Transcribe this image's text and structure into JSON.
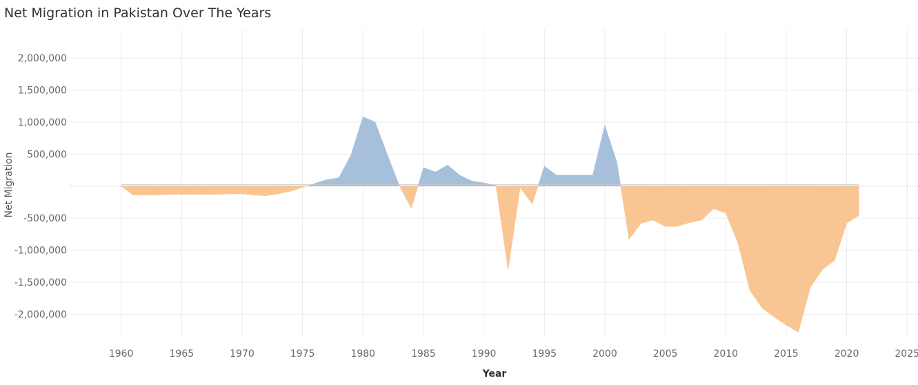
{
  "title": "Net Migration in Pakistan Over The Years",
  "colors": {
    "positive": "#a6c0db",
    "negative": "#f9c693",
    "grid": "#ececec",
    "zero": "#c8c8c8"
  },
  "chart_data": {
    "type": "area",
    "title": "Net Migration in Pakistan Over The Years",
    "xlabel": "Year",
    "ylabel": "Net Migration",
    "xlim": [
      1955.8,
      2025.9
    ],
    "ylim": [
      -2350000,
      2280000
    ],
    "xticks": [
      1960,
      1965,
      1970,
      1975,
      1980,
      1985,
      1990,
      1995,
      2000,
      2005,
      2010,
      2015,
      2020,
      2025
    ],
    "xtick_labels": [
      "1960",
      "1965",
      "1970",
      "1975",
      "1980",
      "1985",
      "1990",
      "1995",
      "2000",
      "2005",
      "2010",
      "2015",
      "2020",
      "2025"
    ],
    "yticks": [
      2000000,
      1500000,
      1000000,
      500000,
      -500000,
      -1000000,
      -1500000,
      -2000000
    ],
    "ytick_labels": [
      "2,000,000",
      "1,500,000",
      "1,000,000",
      "500,000",
      "-500,000",
      "-1,000,000",
      "-1,500,000",
      "-2,000,000"
    ],
    "grid": true,
    "series": [
      {
        "x": [
          1960,
          1961,
          1962,
          1963,
          1964,
          1965,
          1966,
          1967,
          1968,
          1969,
          1970,
          1971,
          1972,
          1973,
          1974,
          1975,
          1976,
          1977,
          1978,
          1979,
          1980,
          1981,
          1982,
          1983,
          1984,
          1985,
          1986,
          1987,
          1988,
          1989,
          1990,
          1991,
          1992,
          1993,
          1994,
          1995,
          1996,
          1997,
          1998,
          1999,
          2000,
          2001,
          2002,
          2003,
          2004,
          2005,
          2006,
          2007,
          2008,
          2009,
          2010,
          2011,
          2012,
          2013,
          2014,
          2015,
          2016,
          2017,
          2018,
          2019,
          2020,
          2021
        ],
        "values": [
          0,
          -140000,
          -140000,
          -140000,
          -130000,
          -130000,
          -130000,
          -130000,
          -130000,
          -120000,
          -120000,
          -140000,
          -150000,
          -120000,
          -80000,
          -20000,
          40000,
          100000,
          130000,
          480000,
          1080000,
          1000000,
          500000,
          10000,
          -350000,
          290000,
          220000,
          330000,
          170000,
          80000,
          50000,
          10000,
          -1310000,
          -20000,
          -280000,
          310000,
          170000,
          170000,
          170000,
          170000,
          950000,
          370000,
          -830000,
          -580000,
          -530000,
          -630000,
          -630000,
          -570000,
          -530000,
          -350000,
          -420000,
          -880000,
          -1630000,
          -1900000,
          -2040000,
          -2170000,
          -2280000,
          -1580000,
          -1300000,
          -1160000,
          -580000,
          -460000
        ]
      }
    ]
  }
}
